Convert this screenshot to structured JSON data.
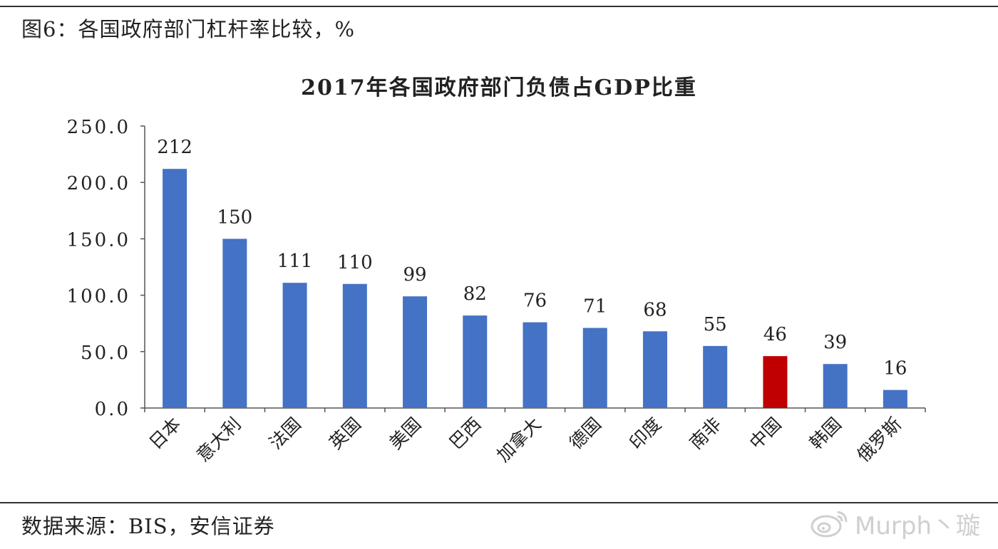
{
  "header": {
    "figure_caption": "图6：各国政府部门杠杆率比较，%"
  },
  "footer": {
    "source": "数据来源：BIS，安信证券",
    "watermark": "Murph丶璇"
  },
  "colors": {
    "bar": "#4472C4",
    "highlight": "#C00000"
  },
  "chart_data": {
    "type": "bar",
    "title": "2017年各国政府部门负债占GDP比重",
    "xlabel": "",
    "ylabel": "",
    "ylim": [
      0,
      250
    ],
    "yticks": [
      "0.0",
      "50.0",
      "100.0",
      "150.0",
      "200.0",
      "250.0"
    ],
    "tick_values": [
      0,
      50,
      100,
      150,
      200,
      250
    ],
    "categories": [
      "日本",
      "意大利",
      "法国",
      "英国",
      "美国",
      "巴西",
      "加拿大",
      "德国",
      "印度",
      "南非",
      "中国",
      "韩国",
      "俄罗斯"
    ],
    "values": [
      212,
      150,
      111,
      110,
      99,
      82,
      76,
      71,
      68,
      55,
      46,
      39,
      16
    ],
    "highlight": "中国",
    "grid": false,
    "legend": "none"
  }
}
